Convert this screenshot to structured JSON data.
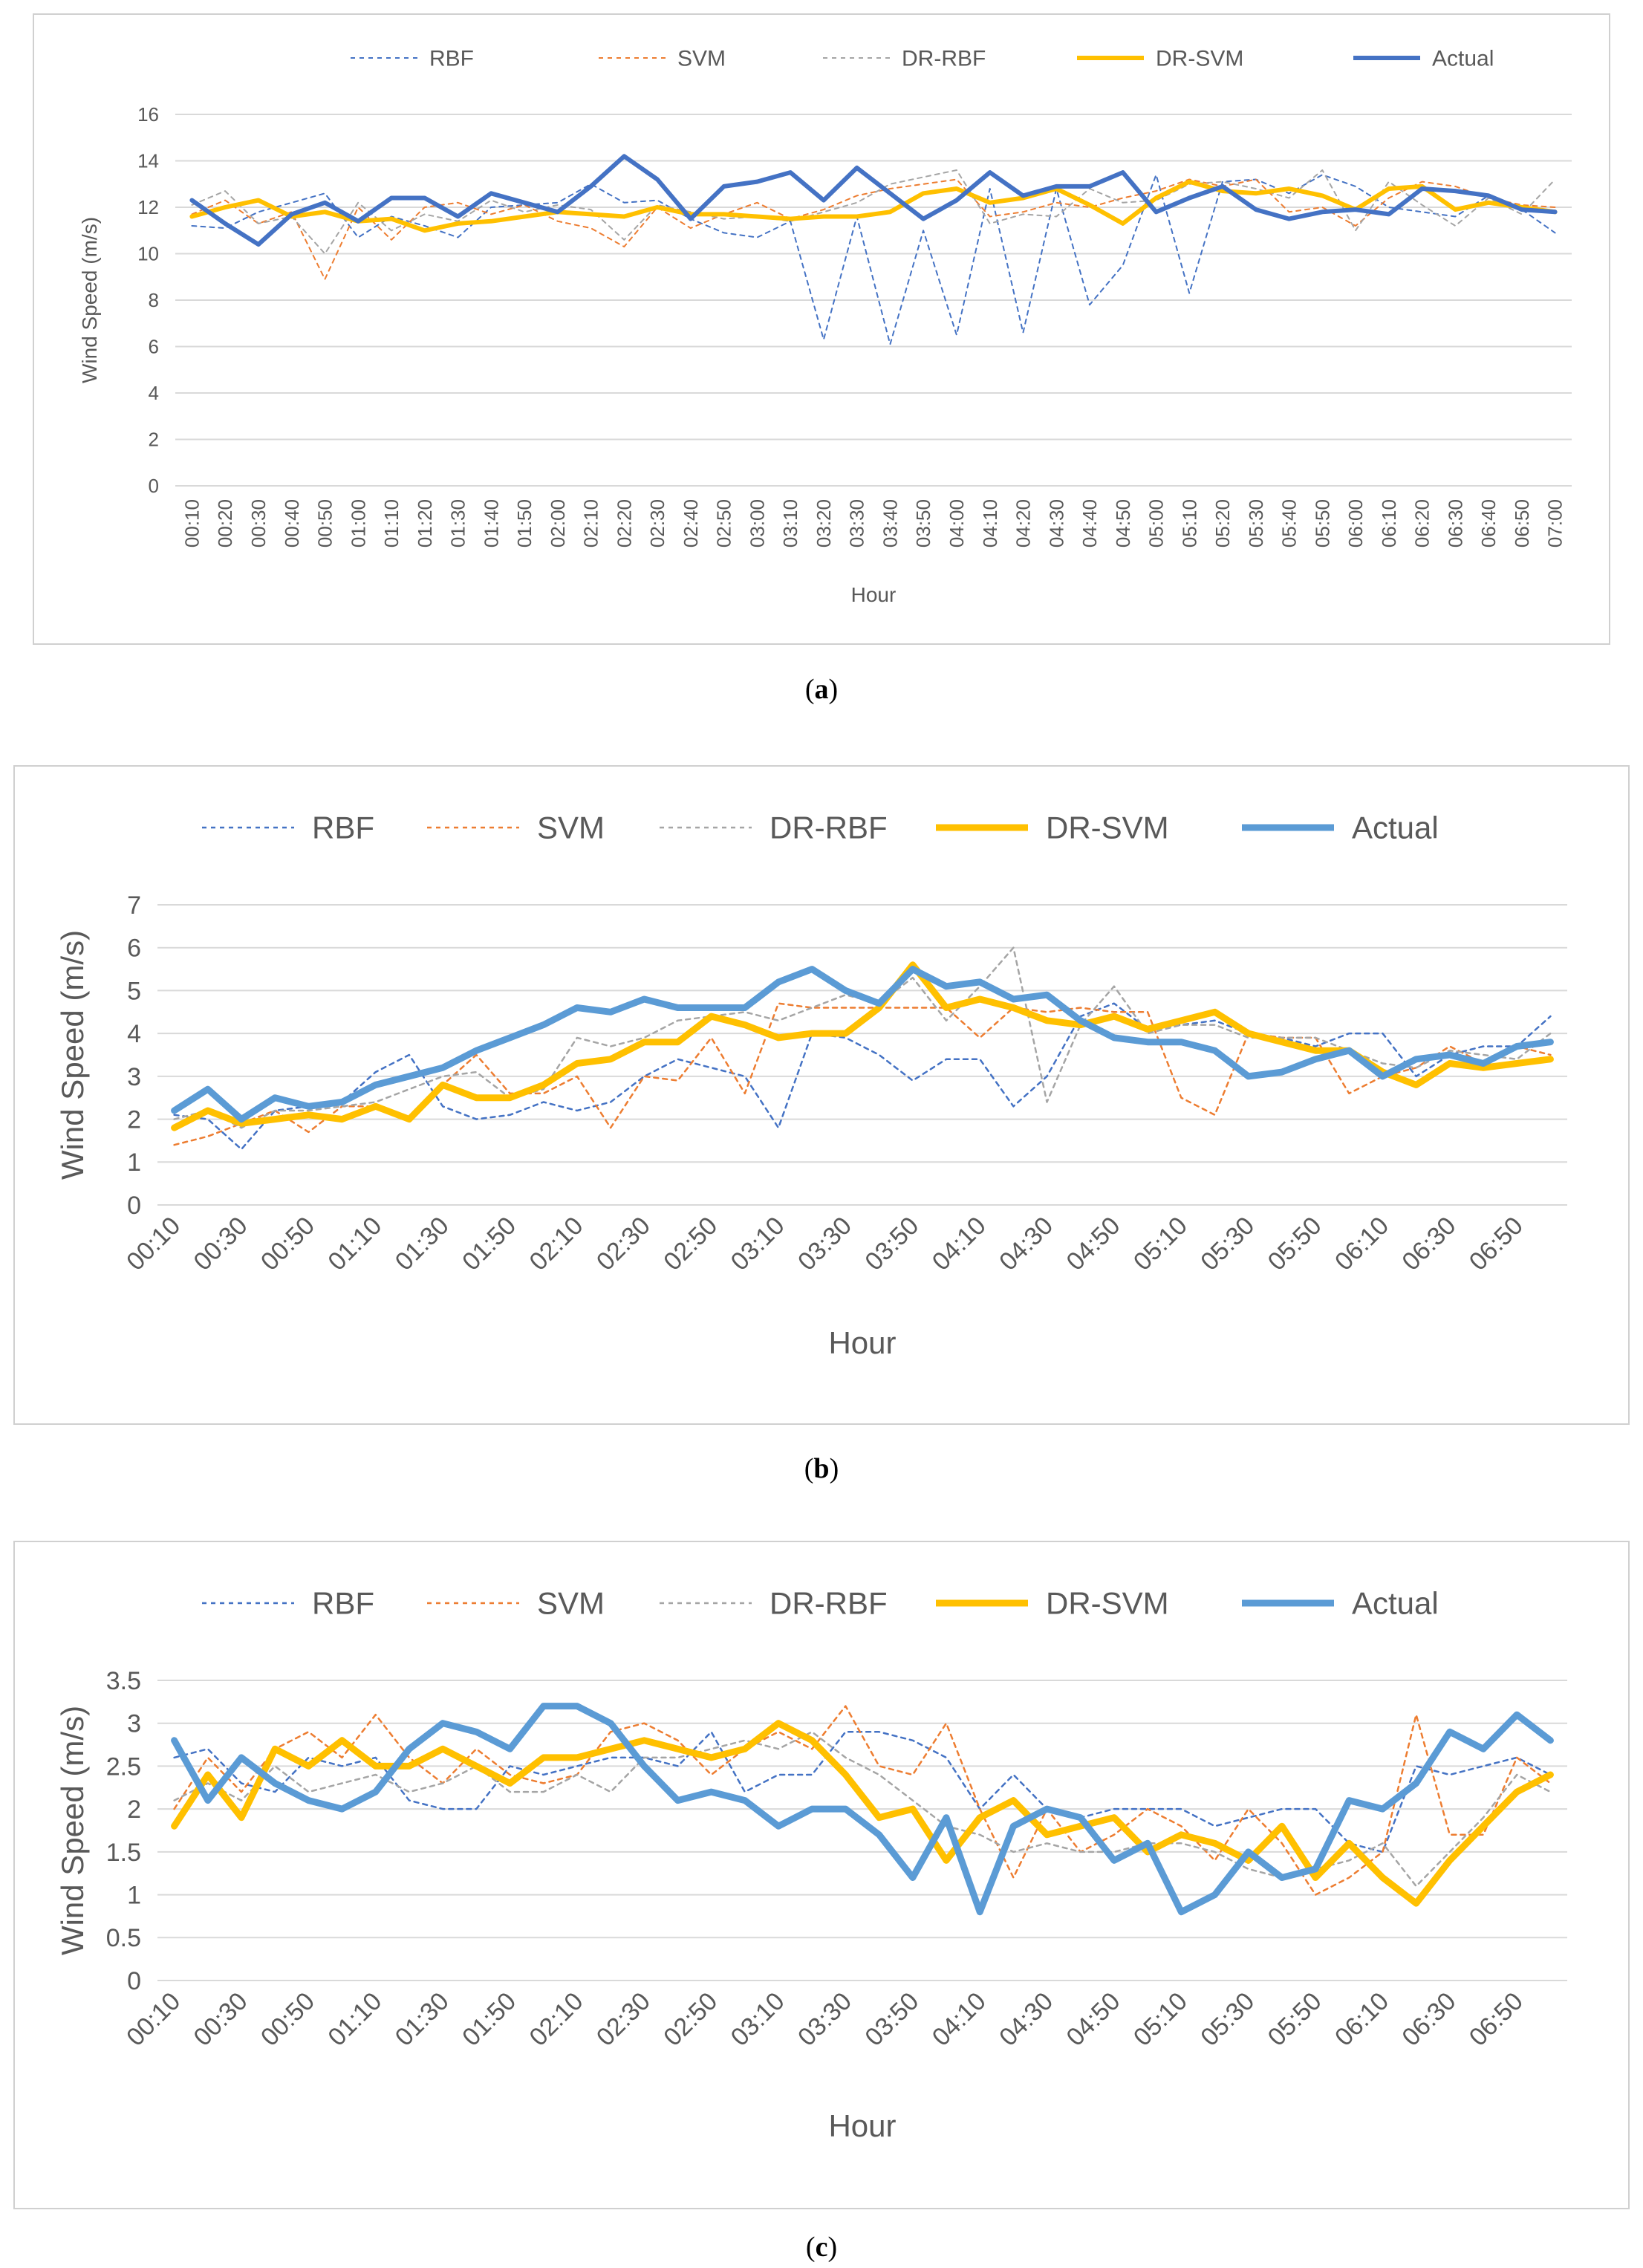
{
  "colors": {
    "rbf": "#4472C4",
    "svm": "#ED7D31",
    "drrbf": "#A5A5A5",
    "drsvm": "#FFC000",
    "actual_a": "#4472C4",
    "actual_bc": "#5B9BD5",
    "axis": "#D9D9D9",
    "text": "#595959"
  },
  "chart_data": [
    {
      "id": "a",
      "type": "line",
      "caption_label": "a",
      "title": "",
      "xlabel": "Hour",
      "ylabel": "Wind Speed (m/s)",
      "ylim": [
        0,
        16
      ],
      "ytick_step": 2,
      "yticks": [
        "0",
        "2",
        "4",
        "6",
        "8",
        "10",
        "12",
        "14",
        "16"
      ],
      "categories": [
        "00:10",
        "00:20",
        "00:30",
        "00:40",
        "00:50",
        "01:00",
        "01:10",
        "01:20",
        "01:30",
        "01:40",
        "01:50",
        "02:00",
        "02:10",
        "02:20",
        "02:30",
        "02:40",
        "02:50",
        "03:00",
        "03:10",
        "03:20",
        "03:30",
        "03:40",
        "03:50",
        "04:00",
        "04:10",
        "04:20",
        "04:30",
        "04:40",
        "04:50",
        "05:00",
        "05:10",
        "05:20",
        "05:30",
        "05:40",
        "05:50",
        "06:00",
        "06:10",
        "06:20",
        "06:30",
        "06:40",
        "06:50",
        "07:00"
      ],
      "tick_labels": [
        "00:10",
        "00:20",
        "00:30",
        "00:40",
        "00:50",
        "01:00",
        "01:10",
        "01:20",
        "01:30",
        "01:40",
        "01:50",
        "02:00",
        "02:10",
        "02:20",
        "02:30",
        "02:40",
        "02:50",
        "03:00",
        "03:10",
        "03:20",
        "03:30",
        "03:40",
        "03:50",
        "04:00",
        "04:10",
        "04:20",
        "04:30",
        "04:40",
        "04:50",
        "05:00",
        "05:10",
        "05:20",
        "05:30",
        "05:40",
        "05:50",
        "06:00",
        "06:10",
        "06:20",
        "06:30",
        "06:40",
        "06:50",
        "07:00"
      ],
      "legend_position": "top",
      "series": [
        {
          "name": "RBF",
          "key": "rbf",
          "values": [
            11.2,
            11.1,
            11.8,
            12.2,
            12.6,
            10.7,
            11.6,
            11.2,
            10.7,
            12.0,
            12.1,
            12.2,
            13.0,
            12.2,
            12.3,
            11.5,
            10.9,
            10.7,
            11.4,
            6.3,
            11.6,
            6.1,
            11.0,
            6.5,
            12.8,
            6.6,
            12.8,
            7.8,
            9.5,
            13.4,
            8.3,
            13.1,
            13.2,
            12.6,
            13.4,
            12.9,
            12.0,
            11.8,
            11.6,
            12.5,
            11.9,
            10.9
          ]
        },
        {
          "name": "SVM",
          "key": "svm",
          "values": [
            11.7,
            12.3,
            11.3,
            11.8,
            8.9,
            12.0,
            10.6,
            12.0,
            12.2,
            11.7,
            12.1,
            11.4,
            11.1,
            10.3,
            12.0,
            11.1,
            11.7,
            12.2,
            11.5,
            11.9,
            12.5,
            12.8,
            13.0,
            13.2,
            11.6,
            11.8,
            12.2,
            12.0,
            12.4,
            12.7,
            13.2,
            12.9,
            13.2,
            11.8,
            12.0,
            11.2,
            12.4,
            13.1,
            12.9,
            12.4,
            12.1,
            12.0
          ]
        },
        {
          "name": "DR-RBF",
          "key": "drrbf",
          "values": [
            12.1,
            12.7,
            11.3,
            11.6,
            10.0,
            12.2,
            11.0,
            11.7,
            11.4,
            12.3,
            11.8,
            12.1,
            11.9,
            10.6,
            12.1,
            11.8,
            11.5,
            11.6,
            11.4,
            11.8,
            12.2,
            13.0,
            13.3,
            13.6,
            11.3,
            11.7,
            11.6,
            12.8,
            12.2,
            12.3,
            13.0,
            13.1,
            12.8,
            12.4,
            13.6,
            11.0,
            13.1,
            12.1,
            11.2,
            12.4,
            11.7,
            13.2
          ]
        },
        {
          "name": "DR-SVM",
          "key": "drsvm",
          "values": [
            11.6,
            12.0,
            12.3,
            11.6,
            11.8,
            11.4,
            11.5,
            11.0,
            11.3,
            11.4,
            11.6,
            11.8,
            11.7,
            11.6,
            12.0,
            11.7,
            11.7,
            11.6,
            11.5,
            11.6,
            11.6,
            11.8,
            12.6,
            12.8,
            12.2,
            12.4,
            12.8,
            12.1,
            11.3,
            12.4,
            13.1,
            12.7,
            12.6,
            12.8,
            12.5,
            11.9,
            12.8,
            12.9,
            11.9,
            12.2,
            12.0,
            11.8
          ]
        },
        {
          "name": "Actual",
          "key": "actual_a",
          "values": [
            12.3,
            11.3,
            10.4,
            11.7,
            12.2,
            11.4,
            12.4,
            12.4,
            11.6,
            12.6,
            12.2,
            11.8,
            12.9,
            14.2,
            13.2,
            11.5,
            12.9,
            13.1,
            13.5,
            12.3,
            13.7,
            12.6,
            11.5,
            12.3,
            13.5,
            12.5,
            12.9,
            12.9,
            13.5,
            11.8,
            12.4,
            12.9,
            11.9,
            11.5,
            11.8,
            11.9,
            11.7,
            12.8,
            12.7,
            12.5,
            11.9,
            11.8
          ]
        }
      ]
    },
    {
      "id": "b",
      "type": "line",
      "caption_label": "b",
      "title": "",
      "xlabel": "Hour",
      "ylabel": "Wind Speed (m/s)",
      "ylim": [
        0,
        7
      ],
      "ytick_step": 1,
      "yticks": [
        "0",
        "1",
        "2",
        "3",
        "4",
        "5",
        "6",
        "7"
      ],
      "categories": [
        "00:10",
        "00:20",
        "00:30",
        "00:40",
        "00:50",
        "01:00",
        "01:10",
        "01:20",
        "01:30",
        "01:40",
        "01:50",
        "02:00",
        "02:10",
        "02:20",
        "02:30",
        "02:40",
        "02:50",
        "03:00",
        "03:10",
        "03:20",
        "03:30",
        "03:40",
        "03:50",
        "04:00",
        "04:10",
        "04:20",
        "04:30",
        "04:40",
        "04:50",
        "05:00",
        "05:10",
        "05:20",
        "05:30",
        "05:40",
        "05:50",
        "06:00",
        "06:10",
        "06:20",
        "06:30",
        "06:40",
        "06:50",
        "07:00"
      ],
      "tick_labels": [
        "00:10",
        "00:30",
        "00:50",
        "01:10",
        "01:30",
        "01:50",
        "02:10",
        "02:30",
        "02:50",
        "03:10",
        "03:30",
        "03:50",
        "04:10",
        "04:30",
        "04:50",
        "05:10",
        "05:30",
        "05:50",
        "06:10",
        "06:30",
        "06:50"
      ],
      "legend_position": "top",
      "series": [
        {
          "name": "RBF",
          "key": "rbf",
          "values": [
            2.1,
            2.0,
            1.3,
            2.2,
            2.3,
            2.4,
            3.1,
            3.5,
            2.3,
            2.0,
            2.1,
            2.4,
            2.2,
            2.4,
            3.0,
            3.4,
            3.2,
            3.0,
            1.8,
            4.0,
            3.9,
            3.5,
            2.9,
            3.4,
            3.4,
            2.3,
            3.0,
            4.4,
            4.7,
            4.1,
            4.2,
            4.3,
            4.0,
            3.9,
            3.7,
            4.0,
            4.0,
            3.0,
            3.5,
            3.7,
            3.7,
            4.4
          ]
        },
        {
          "name": "SVM",
          "key": "svm",
          "values": [
            1.4,
            1.6,
            1.9,
            2.2,
            1.7,
            2.3,
            2.3,
            2.0,
            2.8,
            3.5,
            2.6,
            2.6,
            3.0,
            1.8,
            3.0,
            2.9,
            3.9,
            2.6,
            4.7,
            4.6,
            4.6,
            4.6,
            4.6,
            4.6,
            3.9,
            4.6,
            4.5,
            4.6,
            4.5,
            4.5,
            2.5,
            2.1,
            4.0,
            3.9,
            3.9,
            2.6,
            3.0,
            3.2,
            3.7,
            3.3,
            3.7,
            3.5
          ]
        },
        {
          "name": "DR-RBF",
          "key": "drrbf",
          "values": [
            2.0,
            2.2,
            1.8,
            2.2,
            2.2,
            2.3,
            2.4,
            2.7,
            3.0,
            3.1,
            2.5,
            2.7,
            3.9,
            3.7,
            3.9,
            4.3,
            4.4,
            4.5,
            4.3,
            4.6,
            4.9,
            4.7,
            5.3,
            4.3,
            5.1,
            6.0,
            2.4,
            4.2,
            5.1,
            4.0,
            4.2,
            4.2,
            3.9,
            3.9,
            3.9,
            3.6,
            3.3,
            3.2,
            3.6,
            3.5,
            3.4,
            4.0
          ]
        },
        {
          "name": "DR-SVM",
          "key": "drsvm",
          "values": [
            1.8,
            2.2,
            1.9,
            2.0,
            2.1,
            2.0,
            2.3,
            2.0,
            2.8,
            2.5,
            2.5,
            2.8,
            3.3,
            3.4,
            3.8,
            3.8,
            4.4,
            4.2,
            3.9,
            4.0,
            4.0,
            4.6,
            5.6,
            4.6,
            4.8,
            4.6,
            4.3,
            4.2,
            4.4,
            4.1,
            4.3,
            4.5,
            4.0,
            3.8,
            3.6,
            3.6,
            3.1,
            2.8,
            3.3,
            3.2,
            3.3,
            3.4
          ]
        },
        {
          "name": "Actual",
          "key": "actual_bc",
          "values": [
            2.2,
            2.7,
            2.0,
            2.5,
            2.3,
            2.4,
            2.8,
            3.0,
            3.2,
            3.6,
            3.9,
            4.2,
            4.6,
            4.5,
            4.8,
            4.6,
            4.6,
            4.6,
            5.2,
            5.5,
            5.0,
            4.7,
            5.5,
            5.1,
            5.2,
            4.8,
            4.9,
            4.3,
            3.9,
            3.8,
            3.8,
            3.6,
            3.0,
            3.1,
            3.4,
            3.6,
            3.0,
            3.4,
            3.5,
            3.3,
            3.7,
            3.8
          ]
        }
      ]
    },
    {
      "id": "c",
      "type": "line",
      "caption_label": "c",
      "title": "",
      "xlabel": "Hour",
      "ylabel": "Wind Speed (m/s)",
      "ylim": [
        0,
        3.5
      ],
      "ytick_step": 0.5,
      "yticks": [
        "0",
        "0.5",
        "1",
        "1.5",
        "2",
        "2.5",
        "3",
        "3.5"
      ],
      "categories": [
        "00:10",
        "00:20",
        "00:30",
        "00:40",
        "00:50",
        "01:00",
        "01:10",
        "01:20",
        "01:30",
        "01:40",
        "01:50",
        "02:00",
        "02:10",
        "02:20",
        "02:30",
        "02:40",
        "02:50",
        "03:00",
        "03:10",
        "03:20",
        "03:30",
        "03:40",
        "03:50",
        "04:00",
        "04:10",
        "04:20",
        "04:30",
        "04:40",
        "04:50",
        "05:00",
        "05:10",
        "05:20",
        "05:30",
        "05:40",
        "05:50",
        "06:00",
        "06:10",
        "06:20",
        "06:30",
        "06:40",
        "06:50",
        "07:00"
      ],
      "tick_labels": [
        "00:10",
        "00:30",
        "00:50",
        "01:10",
        "01:30",
        "01:50",
        "02:10",
        "02:30",
        "02:50",
        "03:10",
        "03:30",
        "03:50",
        "04:10",
        "04:30",
        "04:50",
        "05:10",
        "05:30",
        "05:50",
        "06:10",
        "06:30",
        "06:50"
      ],
      "legend_position": "top",
      "series": [
        {
          "name": "RBF",
          "key": "rbf",
          "values": [
            2.6,
            2.7,
            2.3,
            2.2,
            2.6,
            2.5,
            2.6,
            2.1,
            2.0,
            2.0,
            2.5,
            2.4,
            2.5,
            2.6,
            2.6,
            2.5,
            2.9,
            2.2,
            2.4,
            2.4,
            2.9,
            2.9,
            2.8,
            2.6,
            2.0,
            2.4,
            2.0,
            1.9,
            2.0,
            2.0,
            2.0,
            1.8,
            1.9,
            2.0,
            2.0,
            1.6,
            1.5,
            2.5,
            2.4,
            2.5,
            2.6,
            2.4
          ]
        },
        {
          "name": "SVM",
          "key": "svm",
          "values": [
            2.0,
            2.6,
            2.2,
            2.7,
            2.9,
            2.6,
            3.1,
            2.6,
            2.3,
            2.7,
            2.4,
            2.3,
            2.4,
            2.9,
            3.0,
            2.8,
            2.4,
            2.7,
            2.9,
            2.7,
            3.2,
            2.5,
            2.4,
            3.0,
            2.0,
            1.2,
            2.0,
            1.5,
            1.7,
            2.0,
            1.8,
            1.4,
            2.0,
            1.6,
            1.0,
            1.2,
            1.5,
            3.1,
            1.7,
            1.7,
            2.6,
            2.3
          ]
        },
        {
          "name": "DR-RBF",
          "key": "drrbf",
          "values": [
            2.1,
            2.3,
            2.1,
            2.5,
            2.2,
            2.3,
            2.4,
            2.2,
            2.3,
            2.5,
            2.2,
            2.2,
            2.4,
            2.2,
            2.6,
            2.6,
            2.7,
            2.8,
            2.7,
            2.9,
            2.6,
            2.4,
            2.1,
            1.8,
            1.7,
            1.5,
            1.6,
            1.5,
            1.5,
            1.6,
            1.6,
            1.5,
            1.3,
            1.2,
            1.3,
            1.4,
            1.6,
            1.1,
            1.5,
            1.9,
            2.4,
            2.2
          ]
        },
        {
          "name": "DR-SVM",
          "key": "drsvm",
          "values": [
            1.8,
            2.4,
            1.9,
            2.7,
            2.5,
            2.8,
            2.5,
            2.5,
            2.7,
            2.5,
            2.3,
            2.6,
            2.6,
            2.7,
            2.8,
            2.7,
            2.6,
            2.7,
            3.0,
            2.8,
            2.4,
            1.9,
            2.0,
            1.4,
            1.9,
            2.1,
            1.7,
            1.8,
            1.9,
            1.5,
            1.7,
            1.6,
            1.4,
            1.8,
            1.2,
            1.6,
            1.2,
            0.9,
            1.4,
            1.8,
            2.2,
            2.4
          ]
        },
        {
          "name": "Actual",
          "key": "actual_bc",
          "values": [
            2.8,
            2.1,
            2.6,
            2.3,
            2.1,
            2.0,
            2.2,
            2.7,
            3.0,
            2.9,
            2.7,
            3.2,
            3.2,
            3.0,
            2.5,
            2.1,
            2.2,
            2.1,
            1.8,
            2.0,
            2.0,
            1.7,
            1.2,
            1.9,
            0.8,
            1.8,
            2.0,
            1.9,
            1.4,
            1.6,
            0.8,
            1.0,
            1.5,
            1.2,
            1.3,
            2.1,
            2.0,
            2.3,
            2.9,
            2.7,
            3.1,
            2.8
          ]
        }
      ]
    }
  ]
}
